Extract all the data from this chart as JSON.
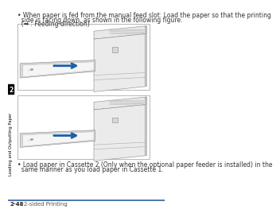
{
  "bg_color": "#ffffff",
  "sidebar_label": "2",
  "sidebar_text": "Loading and Outputting Paper",
  "bullet1_line1": "• When paper is fed from the manual feed slot: Load the paper so that the printing",
  "bullet1_line2": "  side is facing down, as shown in the following figure.",
  "bullet1_line3": "  (➡ : Feeding direction)",
  "bullet2_line1": "• Load paper in Cassette 2 (Only when the optional paper feeder is installed) in the",
  "bullet2_line2": "  same manner as you load paper in Cassette 1.",
  "footer_line_color": "#2e5fa3",
  "footer_page": "2-48",
  "footer_title": "2-sided Printing",
  "img_border_color": "#999999",
  "img_bg_color": "#ffffff",
  "arrow_color": "#1a5fa8",
  "text_color": "#333333",
  "text_fontsize": 5.5
}
